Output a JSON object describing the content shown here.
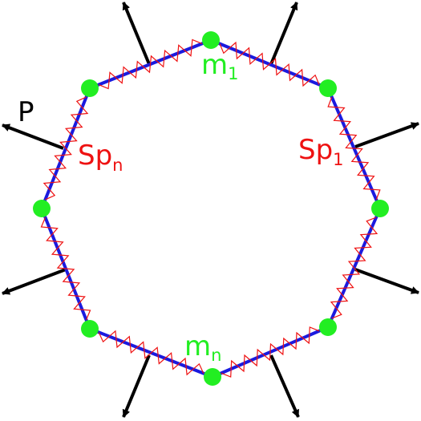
{
  "labels": {
    "mass_first": {
      "base": "m",
      "sub": "1"
    },
    "mass_last": {
      "base": "m",
      "sub": "n"
    },
    "spring_first": {
      "base": "Sp",
      "sub": "1"
    },
    "spring_last": {
      "base": "Sp",
      "sub": "n"
    },
    "pressure": "P"
  },
  "colors": {
    "mass": "#22ee22",
    "ring": "#1a1adf",
    "spring": "#ee1111",
    "force": "#000000",
    "spring_label": "#ee1111",
    "pressure_label": "#000000"
  }
}
